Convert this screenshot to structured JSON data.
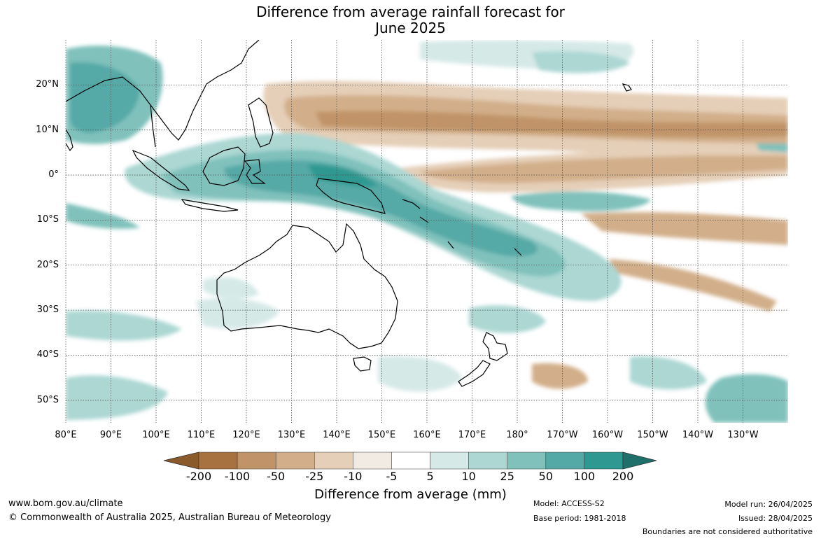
{
  "title_line1": "Difference from average rainfall forecast for",
  "title_line2": "June 2025",
  "lat_labels": [
    "20°N",
    "10°N",
    "0°",
    "10°S",
    "20°S",
    "30°S",
    "40°S",
    "50°S"
  ],
  "lat_values": [
    20,
    10,
    0,
    -10,
    -20,
    -30,
    -40,
    -50
  ],
  "lon_labels": [
    "80°E",
    "90°E",
    "100°E",
    "110°E",
    "120°E",
    "130°E",
    "140°E",
    "150°E",
    "160°E",
    "170°E",
    "180°",
    "170°W",
    "160°W",
    "150°W",
    "140°W",
    "130°W"
  ],
  "lon_values": [
    80,
    90,
    100,
    110,
    120,
    130,
    140,
    150,
    160,
    170,
    180,
    190,
    200,
    210,
    220,
    230
  ],
  "map_extent": {
    "lon": [
      80,
      240
    ],
    "lat": [
      -55,
      30
    ]
  },
  "colorbar": {
    "ticks": [
      "-200",
      "-100",
      "-50",
      "-25",
      "-10",
      "-5",
      "5",
      "10",
      "25",
      "50",
      "100",
      "200"
    ],
    "colors": [
      "#8b5a2b",
      "#a87140",
      "#c09468",
      "#d2af8a",
      "#e5cfb8",
      "#f2ebe3",
      "#ffffff",
      "#d5e9e7",
      "#acd7d3",
      "#80c1bc",
      "#54a9a6",
      "#2e9891",
      "#1f6f6b"
    ],
    "label": "Difference from average (mm)"
  },
  "footer": {
    "site": "www.bom.gov.au/climate",
    "copyright": "© Commonwealth of Australia 2025, Australian Bureau of Meteorology",
    "model": "Model: ACCESS-S2",
    "base_period": "Base period: 1981-2018",
    "model_run": "Model run: 26/04/2025",
    "issued": "Issued: 28/04/2025",
    "boundaries": "Boundaries are not considered authoritative"
  }
}
